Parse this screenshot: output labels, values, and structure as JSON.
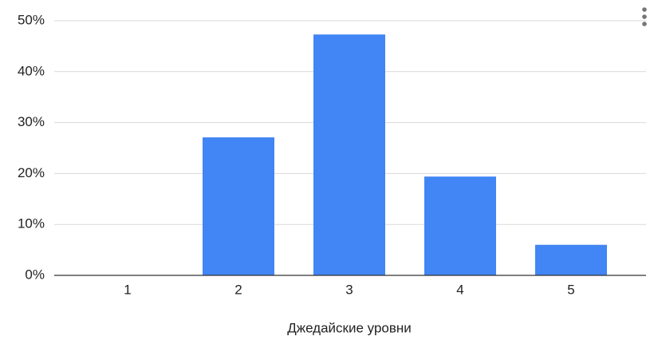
{
  "chart_data": {
    "type": "bar",
    "x_label": "Джедайские уровни",
    "categories": [
      "1",
      "2",
      "3",
      "4",
      "5"
    ],
    "values": [
      0,
      27.1,
      47.3,
      19.4,
      6.0
    ],
    "color": "#4285f4",
    "ylim": [
      0,
      50
    ],
    "yticks": [
      {
        "value": 0,
        "label": "0%"
      },
      {
        "value": 10,
        "label": "10%"
      },
      {
        "value": 20,
        "label": "20%"
      },
      {
        "value": 30,
        "label": "30%"
      },
      {
        "value": 40,
        "label": "40%"
      },
      {
        "value": 50,
        "label": "50%"
      }
    ],
    "grid": true
  }
}
